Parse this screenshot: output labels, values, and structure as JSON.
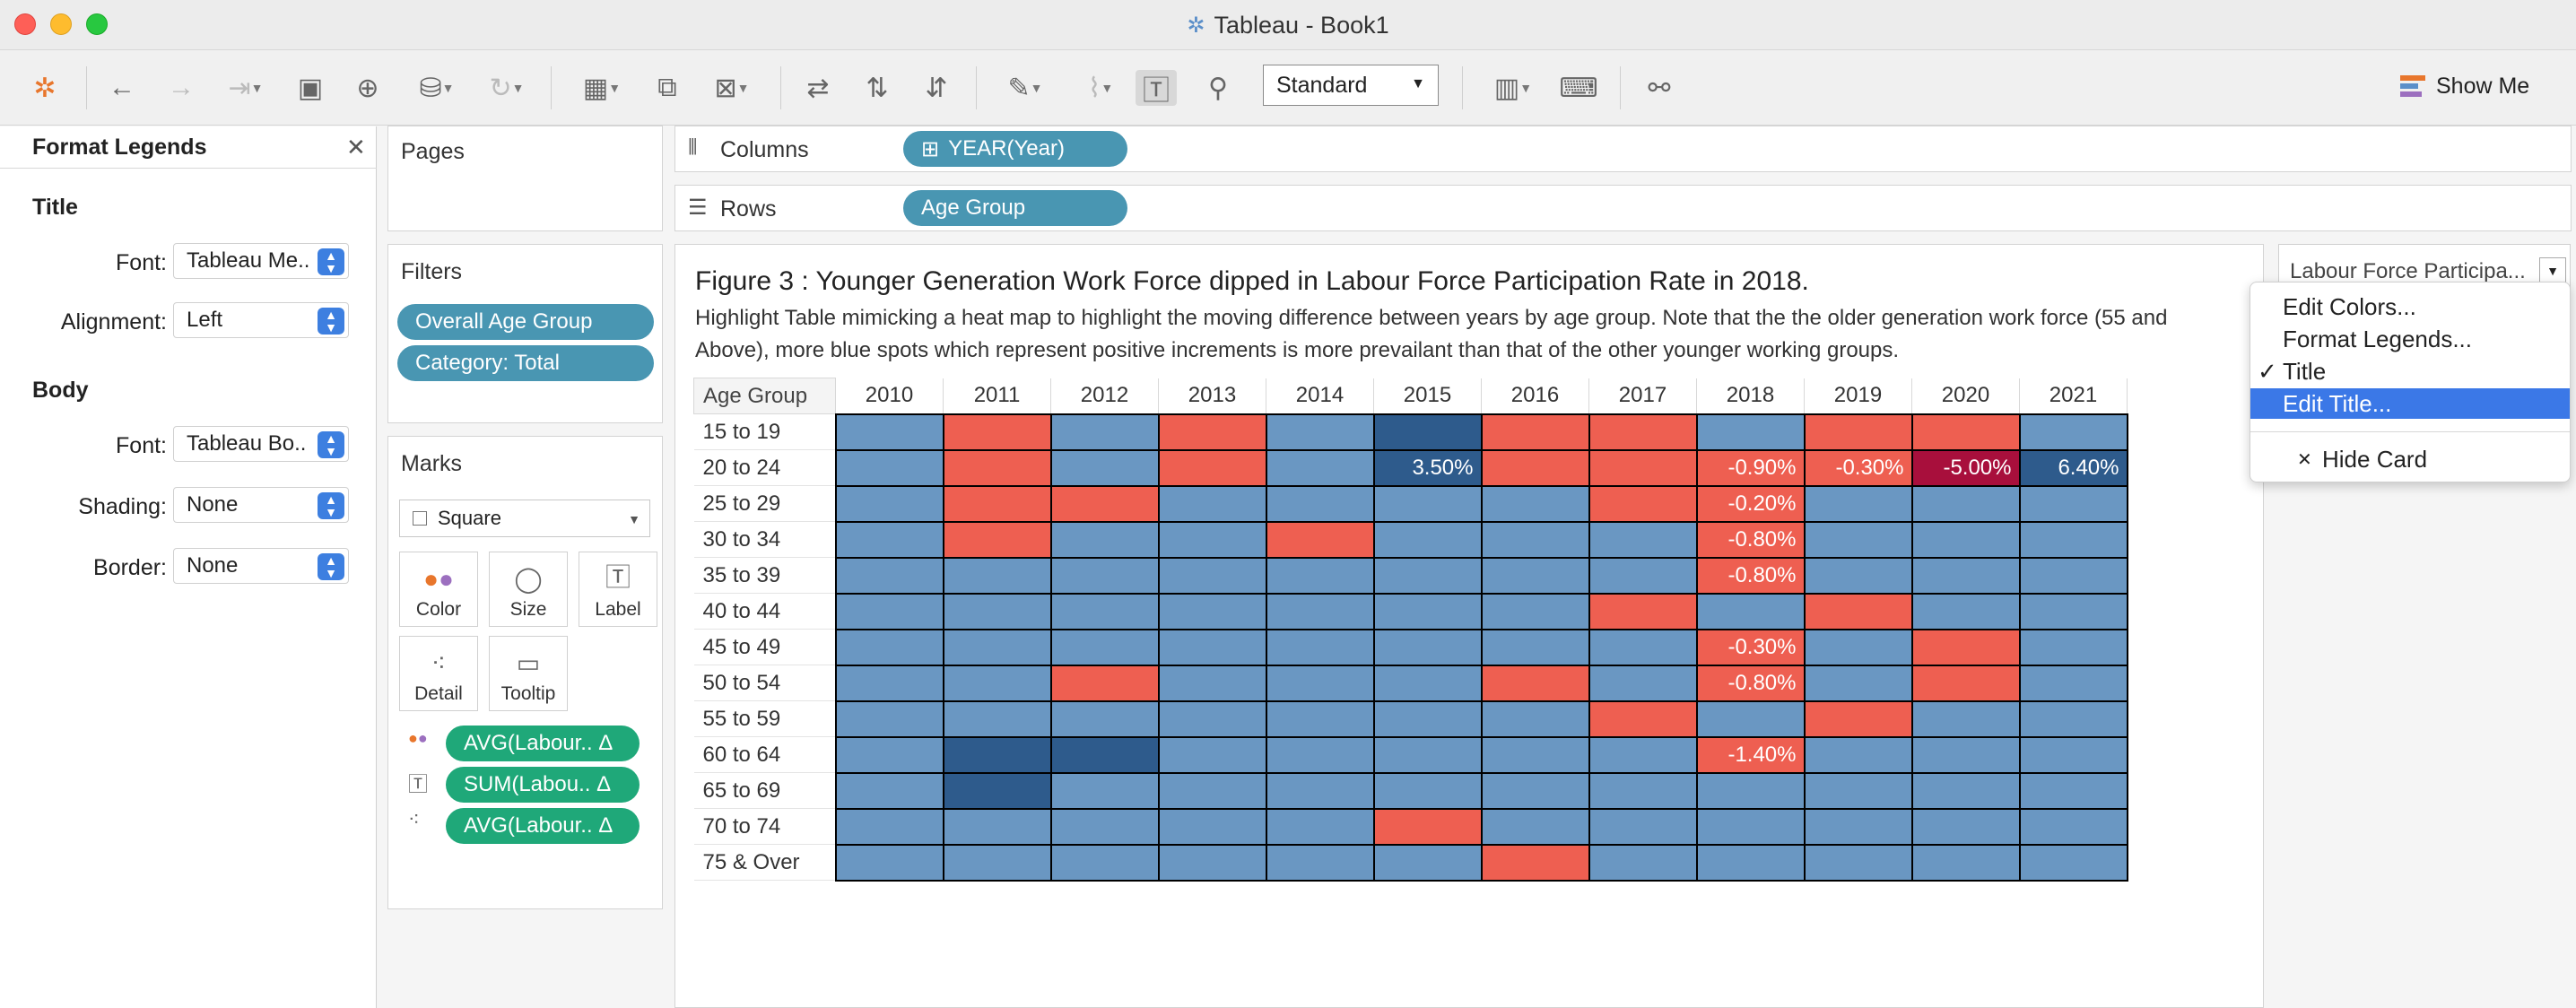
{
  "window": {
    "title": "Tableau - Book1"
  },
  "toolbar": {
    "view_size": "Standard",
    "show_me": "Show Me"
  },
  "format_pane": {
    "title": "Format Legends",
    "title_section": "Title",
    "title_font_label": "Font:",
    "title_font": "Tableau Me..",
    "alignment_label": "Alignment:",
    "alignment": "Left",
    "body_section": "Body",
    "body_font_label": "Font:",
    "body_font": "Tableau Bo..",
    "shading_label": "Shading:",
    "shading": "None",
    "border_label": "Border:",
    "border": "None"
  },
  "pages": {
    "label": "Pages"
  },
  "filters": {
    "label": "Filters",
    "items": [
      "Overall Age Group",
      "Category: Total"
    ]
  },
  "marks": {
    "label": "Marks",
    "type": "Square",
    "buttons": [
      "Color",
      "Size",
      "Label",
      "Detail",
      "Tooltip"
    ],
    "fields": [
      "AVG(Labour.. Δ",
      "SUM(Labou.. Δ",
      "AVG(Labour.. Δ"
    ]
  },
  "shelves": {
    "columns_label": "Columns",
    "columns_pill": "YEAR(Year)",
    "rows_label": "Rows",
    "rows_pill": "Age Group"
  },
  "view": {
    "title": "Figure 3 : Younger Generation Work Force dipped in Labour Force Participation Rate in 2018.",
    "subtitle": "Highlight Table mimicking a heat map to highlight the moving difference between years by age group. Note that the the older generation work force (55 and Above), more blue spots which represent positive increments is more  prevailant than that of the other younger working groups."
  },
  "legend": {
    "title": "Labour Force Participa...",
    "menu": [
      "Edit Colors...",
      "Format Legends...",
      "Title",
      "Edit Title...",
      "Hide Card"
    ]
  },
  "colors": {
    "increase": "#6a97c2",
    "decrease": "#ee5f51",
    "strong_increase": "#2e5b8c",
    "strong_decrease": "#a80f3c"
  },
  "chart_data": {
    "type": "heatmap",
    "corner_label": "Age Group",
    "years": [
      "2010",
      "2011",
      "2012",
      "2013",
      "2014",
      "2015",
      "2016",
      "2017",
      "2018",
      "2019",
      "2020",
      "2021"
    ],
    "rows": [
      {
        "group": "15 to 19",
        "cells": [
          "b",
          "r",
          "b",
          "r",
          "b",
          "d",
          "r",
          "r",
          "b",
          "r",
          "r",
          "b"
        ],
        "labels": [
          "",
          "",
          "",
          "",
          "",
          "",
          "",
          "",
          "",
          "",
          "",
          ""
        ]
      },
      {
        "group": "20 to 24",
        "cells": [
          "b",
          "r",
          "b",
          "r",
          "b",
          "d",
          "r",
          "r",
          "r",
          "r",
          "m",
          "d"
        ],
        "labels": [
          "",
          "",
          "",
          "",
          "",
          "3.50%",
          "",
          "",
          "-0.90%",
          "-0.30%",
          "-5.00%",
          "6.40%"
        ]
      },
      {
        "group": "25 to 29",
        "cells": [
          "b",
          "r",
          "r",
          "b",
          "b",
          "b",
          "b",
          "r",
          "r",
          "b",
          "b",
          "b"
        ],
        "labels": [
          "",
          "",
          "",
          "",
          "",
          "",
          "",
          "",
          "-0.20%",
          "",
          "",
          ""
        ]
      },
      {
        "group": "30 to 34",
        "cells": [
          "b",
          "r",
          "b",
          "b",
          "r",
          "b",
          "b",
          "b",
          "r",
          "b",
          "b",
          "b"
        ],
        "labels": [
          "",
          "",
          "",
          "",
          "",
          "",
          "",
          "",
          "-0.80%",
          "",
          "",
          ""
        ]
      },
      {
        "group": "35 to 39",
        "cells": [
          "b",
          "b",
          "b",
          "b",
          "b",
          "b",
          "b",
          "b",
          "r",
          "b",
          "b",
          "b"
        ],
        "labels": [
          "",
          "",
          "",
          "",
          "",
          "",
          "",
          "",
          "-0.80%",
          "",
          "",
          ""
        ]
      },
      {
        "group": "40 to 44",
        "cells": [
          "b",
          "b",
          "b",
          "b",
          "b",
          "b",
          "b",
          "r",
          "b",
          "r",
          "b",
          "b"
        ],
        "labels": [
          "",
          "",
          "",
          "",
          "",
          "",
          "",
          "",
          "",
          "",
          "",
          ""
        ]
      },
      {
        "group": "45 to 49",
        "cells": [
          "b",
          "b",
          "b",
          "b",
          "b",
          "b",
          "b",
          "b",
          "r",
          "b",
          "r",
          "b"
        ],
        "labels": [
          "",
          "",
          "",
          "",
          "",
          "",
          "",
          "",
          "-0.30%",
          "",
          "",
          ""
        ]
      },
      {
        "group": "50 to 54",
        "cells": [
          "b",
          "b",
          "r",
          "b",
          "b",
          "b",
          "r",
          "b",
          "r",
          "b",
          "r",
          "b"
        ],
        "labels": [
          "",
          "",
          "",
          "",
          "",
          "",
          "",
          "",
          "-0.80%",
          "",
          "",
          ""
        ]
      },
      {
        "group": "55 to 59",
        "cells": [
          "b",
          "b",
          "b",
          "b",
          "b",
          "b",
          "b",
          "r",
          "b",
          "r",
          "b",
          "b"
        ],
        "labels": [
          "",
          "",
          "",
          "",
          "",
          "",
          "",
          "",
          "",
          "",
          "",
          ""
        ]
      },
      {
        "group": "60 to 64",
        "cells": [
          "b",
          "d",
          "d",
          "b",
          "b",
          "b",
          "b",
          "b",
          "r",
          "b",
          "b",
          "b"
        ],
        "labels": [
          "",
          "",
          "",
          "",
          "",
          "",
          "",
          "",
          "-1.40%",
          "",
          "",
          ""
        ]
      },
      {
        "group": "65 to 69",
        "cells": [
          "b",
          "d",
          "b",
          "b",
          "b",
          "b",
          "b",
          "b",
          "b",
          "b",
          "b",
          "b"
        ],
        "labels": [
          "",
          "",
          "",
          "",
          "",
          "",
          "",
          "",
          "",
          "",
          "",
          ""
        ]
      },
      {
        "group": "70 to 74",
        "cells": [
          "b",
          "b",
          "b",
          "b",
          "b",
          "r",
          "b",
          "b",
          "b",
          "b",
          "b",
          "b"
        ],
        "labels": [
          "",
          "",
          "",
          "",
          "",
          "",
          "",
          "",
          "",
          "",
          "",
          ""
        ]
      },
      {
        "group": "75 & Over",
        "cells": [
          "b",
          "b",
          "b",
          "b",
          "b",
          "b",
          "r",
          "b",
          "b",
          "b",
          "b",
          "b"
        ],
        "labels": [
          "",
          "",
          "",
          "",
          "",
          "",
          "",
          "",
          "",
          "",
          "",
          ""
        ]
      }
    ]
  }
}
